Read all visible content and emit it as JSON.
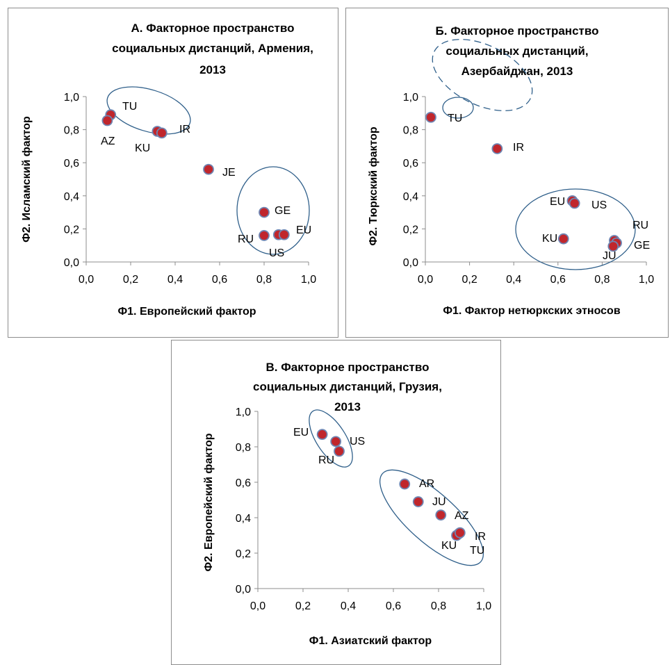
{
  "chart_data": [
    {
      "type": "scatter",
      "title": [
        "А. Факторное пространство",
        "социальных дистанций, Армения,",
        "2013"
      ],
      "xlabel": "Ф1. Европейский  фактор",
      "ylabel": "Ф2. Исламский  фактор",
      "xlim": [
        0,
        1
      ],
      "ylim": [
        0,
        1
      ],
      "xticks": [
        "0,0",
        "0,2",
        "0,4",
        "0,6",
        "0,8",
        "1,0"
      ],
      "yticks": [
        "0,0",
        "0,2",
        "0,4",
        "0,6",
        "0,8",
        "1,0"
      ],
      "points": [
        {
          "label": "TU",
          "x": 0.11,
          "y": 0.89
        },
        {
          "label": "AZ",
          "x": 0.095,
          "y": 0.855
        },
        {
          "label": "KU",
          "x": 0.32,
          "y": 0.79
        },
        {
          "label": "IR",
          "x": 0.34,
          "y": 0.78
        },
        {
          "label": "JE",
          "x": 0.55,
          "y": 0.56
        },
        {
          "label": "GE",
          "x": 0.8,
          "y": 0.3
        },
        {
          "label": "RU",
          "x": 0.8,
          "y": 0.16
        },
        {
          "label": "US",
          "x": 0.865,
          "y": 0.165
        },
        {
          "label": "EU",
          "x": 0.89,
          "y": 0.165
        }
      ],
      "groups": [
        {
          "members": [
            "TU",
            "AZ",
            "KU",
            "IR"
          ],
          "style": "solid"
        },
        {
          "members": [
            "GE",
            "RU",
            "US",
            "EU"
          ],
          "style": "solid"
        }
      ]
    },
    {
      "type": "scatter",
      "title": [
        "Б. Факторное пространство",
        "социальных дистанций,",
        "Азербайджан, 2013"
      ],
      "xlabel": "Ф1. Фактор  нетюркских  этносов",
      "ylabel": "Ф2. Тюркский  фактор",
      "xlim": [
        0,
        1
      ],
      "ylim": [
        0,
        1
      ],
      "xticks": [
        "0,0",
        "0,2",
        "0,4",
        "0,6",
        "0,8",
        "1,0"
      ],
      "yticks": [
        "0,0",
        "0,2",
        "0,4",
        "0,6",
        "0,8",
        "1,0"
      ],
      "points": [
        {
          "label": "TU",
          "x": 0.025,
          "y": 0.875
        },
        {
          "label": "IR",
          "x": 0.325,
          "y": 0.685
        },
        {
          "label": "EU",
          "x": 0.665,
          "y": 0.37
        },
        {
          "label": "US",
          "x": 0.675,
          "y": 0.355
        },
        {
          "label": "KU",
          "x": 0.625,
          "y": 0.14
        },
        {
          "label": "RU",
          "x": 0.855,
          "y": 0.13
        },
        {
          "label": "GE",
          "x": 0.865,
          "y": 0.115
        },
        {
          "label": "JU",
          "x": 0.85,
          "y": 0.095
        }
      ],
      "groups": [
        {
          "members": [
            "TU",
            "IR"
          ],
          "style": "dashed"
        },
        {
          "members": [
            "TU"
          ],
          "style": "solid"
        },
        {
          "members": [
            "EU",
            "US",
            "KU",
            "RU",
            "GE",
            "JU"
          ],
          "style": "solid"
        }
      ]
    },
    {
      "type": "scatter",
      "title": [
        "В. Факторное  пространство",
        "социальных  дистанций,  Грузия,",
        "2013"
      ],
      "xlabel": "Ф1. Азиатский  фактор",
      "ylabel": "Ф2. Европейский  фактор",
      "xlim": [
        0,
        1
      ],
      "ylim": [
        0,
        1
      ],
      "xticks": [
        "0,0",
        "0,2",
        "0,4",
        "0,6",
        "0,8",
        "1,0"
      ],
      "yticks": [
        "0,0",
        "0,2",
        "0,4",
        "0,6",
        "0,8",
        "1,0"
      ],
      "points": [
        {
          "label": "EU",
          "x": 0.285,
          "y": 0.87
        },
        {
          "label": "US",
          "x": 0.345,
          "y": 0.83
        },
        {
          "label": "RU",
          "x": 0.36,
          "y": 0.775
        },
        {
          "label": "AR",
          "x": 0.65,
          "y": 0.59
        },
        {
          "label": "JU",
          "x": 0.71,
          "y": 0.49
        },
        {
          "label": "AZ",
          "x": 0.81,
          "y": 0.415
        },
        {
          "label": "IR",
          "x": 0.89,
          "y": 0.31
        },
        {
          "label": "KU",
          "x": 0.88,
          "y": 0.3
        },
        {
          "label": "TU",
          "x": 0.895,
          "y": 0.315
        }
      ],
      "groups": [
        {
          "members": [
            "EU",
            "US",
            "RU"
          ],
          "style": "solid"
        },
        {
          "members": [
            "AR",
            "JU",
            "AZ",
            "IR",
            "KU",
            "TU"
          ],
          "style": "solid"
        }
      ]
    }
  ],
  "colors": {
    "marker_fill": "#c0262c",
    "marker_edge": "#6f86b3",
    "group_outline": "#2f5f8a",
    "axis": "#8c8c8c"
  }
}
